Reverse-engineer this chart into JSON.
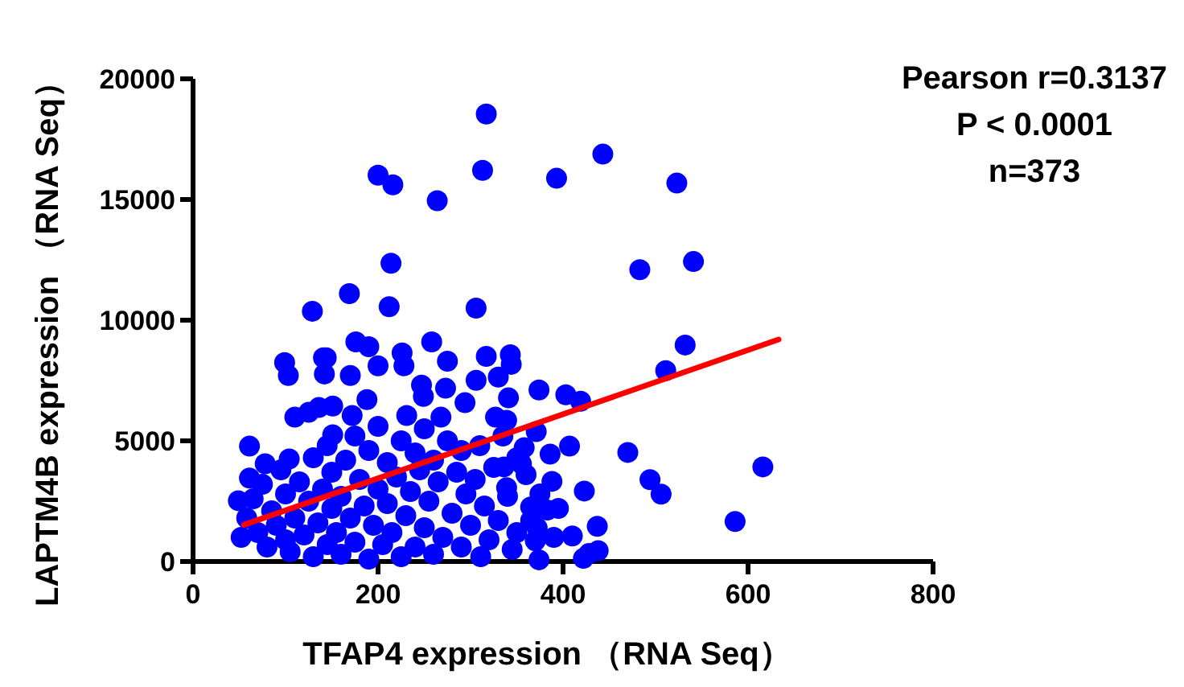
{
  "chart_data": {
    "type": "scatter",
    "xlabel": "TFAP4 expression （RNA Seq）",
    "ylabel": "LAPTM4B expression （RNA Seq）",
    "marker": "circle",
    "annotations": [
      "Pearson r=0.3137",
      "P < 0.0001",
      "n=373"
    ],
    "xlim": [
      0,
      800
    ],
    "ylim": [
      0,
      20000
    ],
    "xticks": [
      0,
      200,
      400,
      600,
      800
    ],
    "yticks": [
      0,
      5000,
      10000,
      15000,
      20000
    ],
    "series": [
      {
        "color": "#0000ff",
        "x": [
          317,
          200,
          216,
          264,
          313,
          393,
          214,
          169,
          212,
          306,
          129,
          443,
          523,
          483,
          541,
          532,
          511,
          419,
          470,
          494,
          506,
          616,
          586,
          423,
          437,
          422,
          374,
          403,
          371,
          407,
          358,
          386,
          388,
          343,
          344,
          317,
          306,
          341,
          330,
          294,
          273,
          275,
          258,
          226,
          228,
          247,
          249,
          268,
          327,
          339,
          231,
          176,
          190,
          200,
          144,
          170,
          188,
          151,
          172,
          438,
          428,
          374,
          410,
          372,
          370,
          311,
          339,
          336,
          355,
          365,
          383,
          99,
          103,
          141,
          142,
          110,
          125,
          136,
          61,
          78,
          61,
          104,
          49,
          52,
          151,
          58,
          65,
          70,
          75,
          80,
          85,
          90,
          95,
          100,
          100,
          105,
          110,
          115,
          120,
          125,
          130,
          130,
          135,
          140,
          145,
          145,
          150,
          150,
          155,
          160,
          160,
          165,
          170,
          175,
          175,
          180,
          185,
          190,
          190,
          195,
          200,
          200,
          205,
          210,
          210,
          215,
          220,
          225,
          225,
          230,
          235,
          240,
          240,
          245,
          250,
          250,
          255,
          260,
          260,
          265,
          270,
          275,
          280,
          285,
          290,
          290,
          295,
          300,
          305,
          310,
          315,
          320,
          325,
          330,
          335,
          340,
          345,
          350,
          350,
          360,
          365,
          375,
          390,
          395
        ],
        "values": [
          18540,
          16010,
          15610,
          14950,
          16210,
          15880,
          12360,
          11100,
          10560,
          10500,
          10370,
          16880,
          15680,
          12090,
          12430,
          8970,
          7910,
          6640,
          4520,
          3390,
          2790,
          3920,
          1660,
          2920,
          1460,
          130,
          7110,
          6910,
          5380,
          4780,
          4720,
          4450,
          3320,
          8570,
          8170,
          8500,
          7510,
          6780,
          7640,
          6580,
          7180,
          8300,
          9100,
          8640,
          8110,
          7310,
          6840,
          5980,
          5980,
          5850,
          6050,
          9100,
          8900,
          8110,
          8440,
          7710,
          6710,
          6440,
          6050,
          450,
          330,
          70,
          1060,
          1390,
          860,
          200,
          3060,
          3920,
          4050,
          2260,
          2130,
          8240,
          7710,
          8440,
          7770,
          5980,
          6180,
          6380,
          4780,
          4050,
          3460,
          4250,
          2520,
          1000,
          5250,
          1800,
          2600,
          1200,
          3200,
          600,
          2100,
          1500,
          3800,
          900,
          2800,
          400,
          1800,
          3300,
          1100,
          2500,
          4300,
          200,
          1600,
          3000,
          700,
          4800,
          2200,
          3700,
          1200,
          300,
          2700,
          4200,
          1800,
          5200,
          800,
          3400,
          2300,
          100,
          4600,
          1500,
          3000,
          5600,
          700,
          2400,
          4100,
          1200,
          3500,
          200,
          5000,
          1900,
          2900,
          600,
          4500,
          3800,
          1400,
          5500,
          2500,
          300,
          4200,
          3300,
          1000,
          5000,
          2000,
          3700,
          600,
          4600,
          2800,
          1500,
          3400,
          4800,
          2300,
          900,
          3900,
          1700,
          5200,
          2700,
          500,
          1200,
          4300,
          3600,
          1700,
          2800,
          1000,
          2200
        ]
      },
      {
        "type": "line",
        "marker": "none",
        "color": "#ff0000",
        "x": [
          55,
          633
        ],
        "values": [
          1520,
          9200
        ]
      }
    ]
  }
}
